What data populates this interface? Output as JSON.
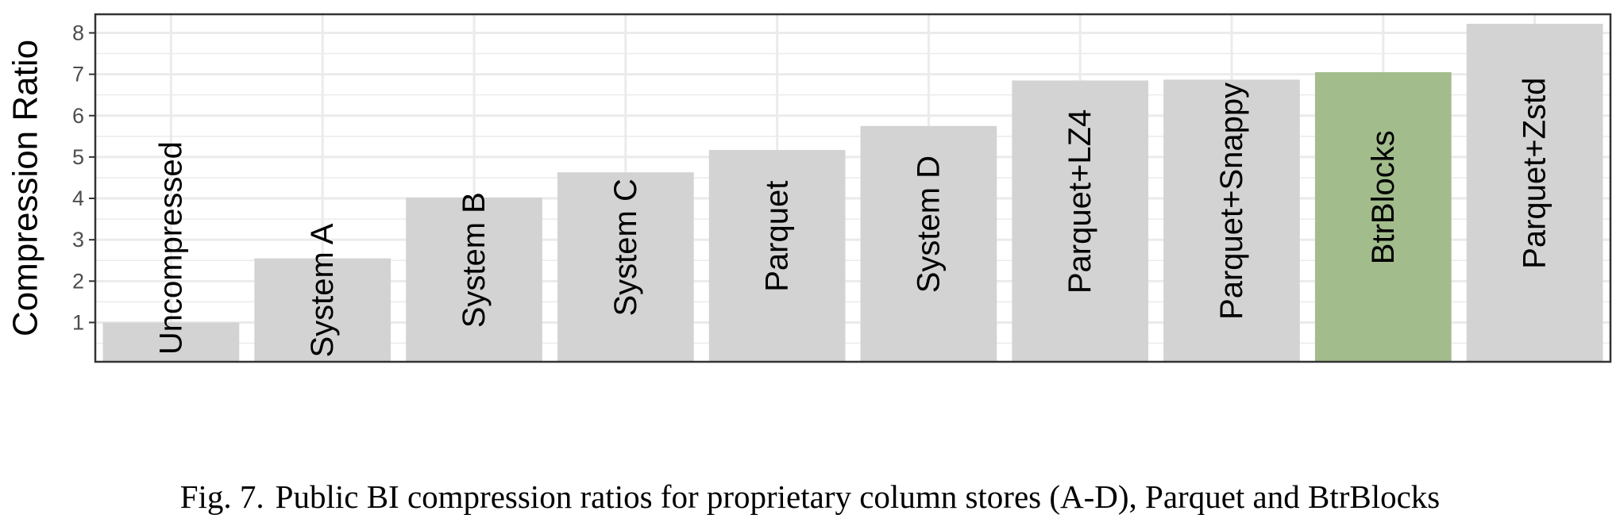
{
  "chart_data": {
    "type": "bar",
    "categories": [
      "Uncompressed",
      "System A",
      "System B",
      "System C",
      "Parquet",
      "System D",
      "Parquet+LZ4",
      "Parquet+Snappy",
      "BtrBlocks",
      "Parquet+Zstd"
    ],
    "values": [
      1.0,
      2.55,
      4.02,
      4.63,
      5.17,
      5.75,
      6.85,
      6.87,
      7.05,
      8.22
    ],
    "highlight": "BtrBlocks",
    "ylabel": "Compression Ratio",
    "xlabel": "",
    "ylim": [
      0.05,
      8.45
    ],
    "yticks": [
      1,
      2,
      3,
      4,
      5,
      6,
      7,
      8
    ],
    "grid": true,
    "colors": {
      "bar": "#d3d3d3",
      "highlight": "#a3bc8c",
      "grid": "#ebebeb",
      "border": "#333333"
    }
  },
  "caption": {
    "fig_number": "Fig. 7.",
    "text": "Public BI compression ratios for proprietary column stores (A-D), Parquet and BtrBlocks"
  }
}
